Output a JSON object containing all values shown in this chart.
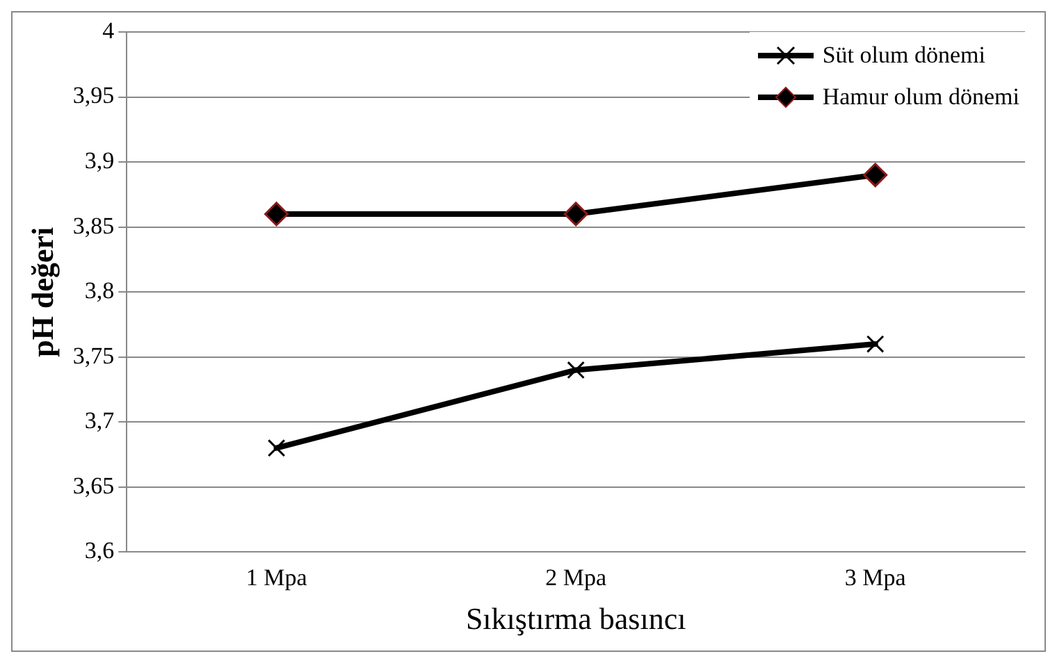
{
  "chart_data": {
    "type": "line",
    "xlabel": "Sıkıştırma basıncı",
    "ylabel": "pH değeri",
    "categories": [
      "1 Mpa",
      "2 Mpa",
      "3 Mpa"
    ],
    "series": [
      {
        "name": "Süt olum dönemi",
        "color": "#000000",
        "marker": "cross",
        "values": [
          3.68,
          3.74,
          3.76
        ]
      },
      {
        "name": "Hamur olum dönemi",
        "color": "#000000",
        "marker": "diamond",
        "values": [
          3.86,
          3.86,
          3.89
        ]
      }
    ],
    "ylim": [
      3.6,
      4
    ],
    "yticks": [
      {
        "value": 3.6,
        "label": "3,6"
      },
      {
        "value": 3.65,
        "label": "3,65"
      },
      {
        "value": 3.7,
        "label": "3,7"
      },
      {
        "value": 3.75,
        "label": "3,75"
      },
      {
        "value": 3.8,
        "label": "3,8"
      },
      {
        "value": 3.85,
        "label": "3,85"
      },
      {
        "value": 3.9,
        "label": "3,9"
      },
      {
        "value": 3.95,
        "label": "3,95"
      },
      {
        "value": 4,
        "label": "4"
      }
    ],
    "grid": "y",
    "legend": "top right",
    "line_style": "solid"
  }
}
